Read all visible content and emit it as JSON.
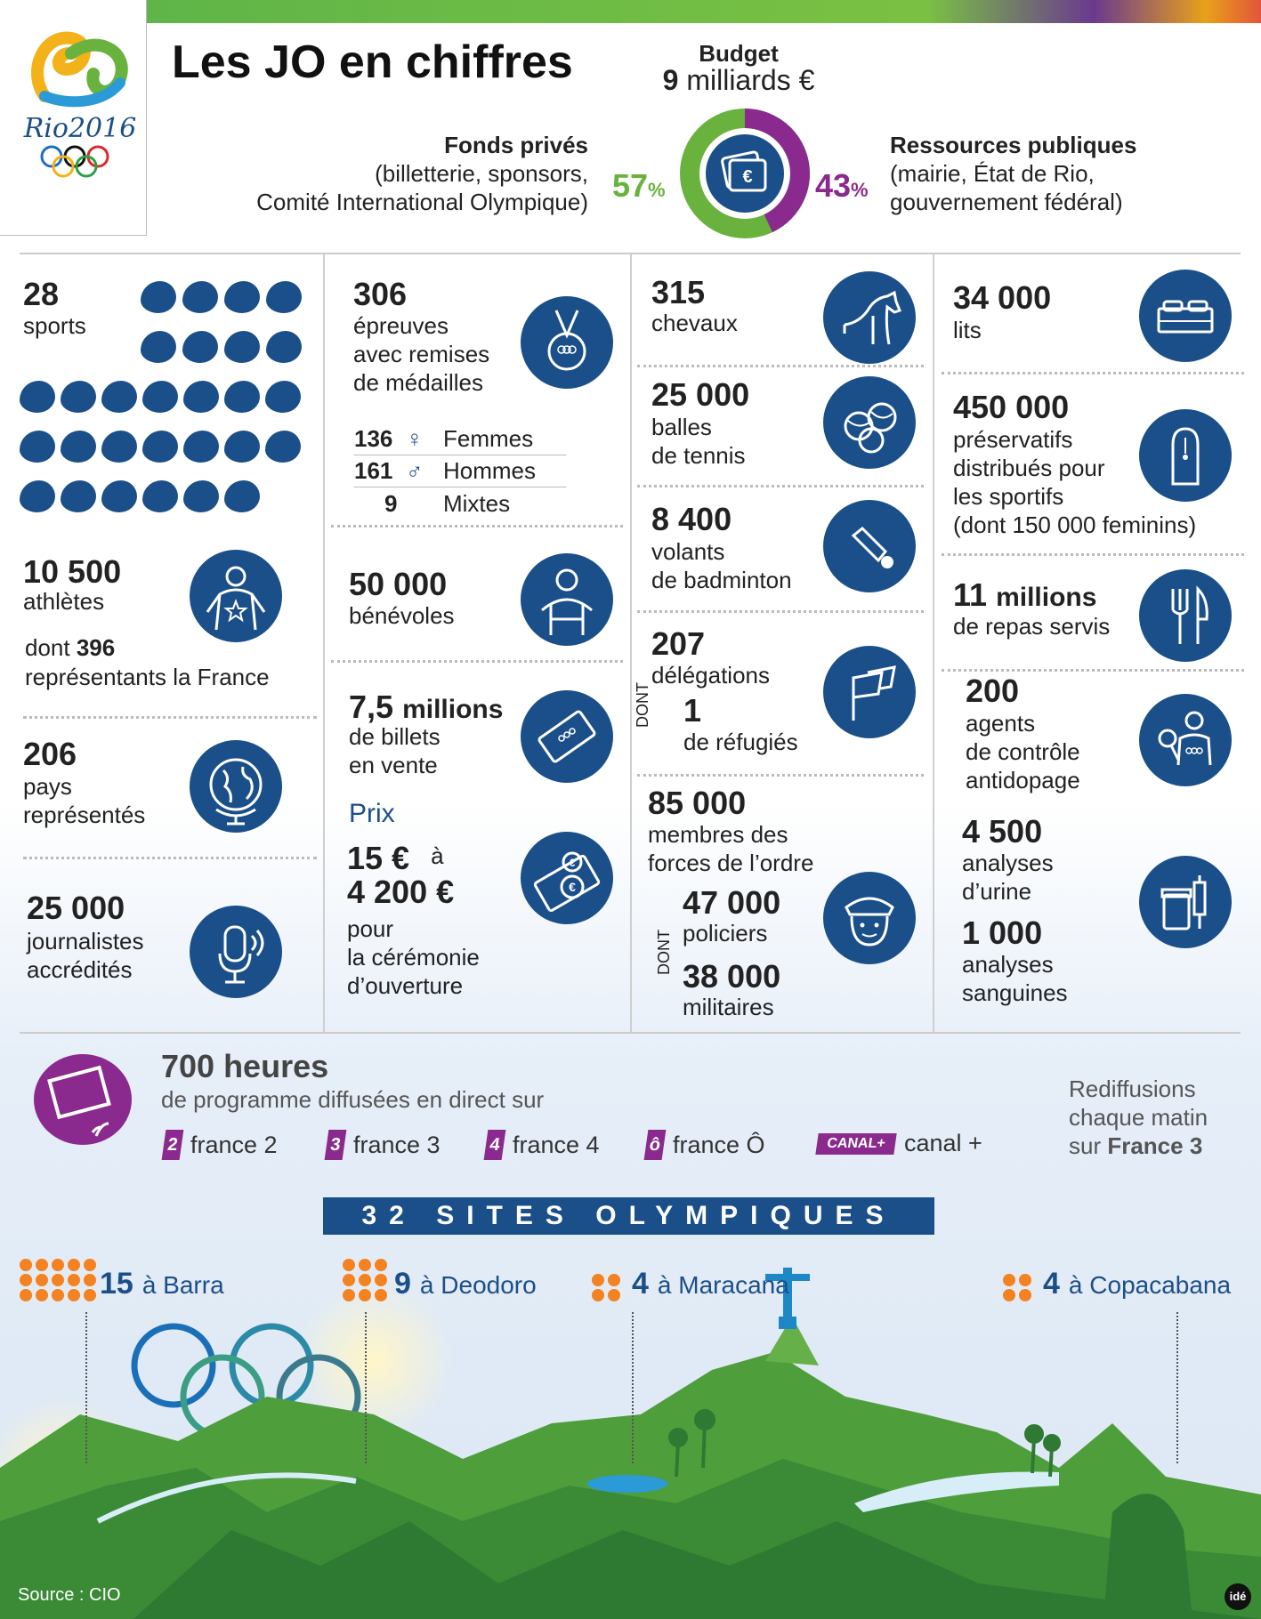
{
  "header": {
    "logo_text": "Rio2016",
    "title": "Les JO en chiffres"
  },
  "budget": {
    "label": "Budget",
    "amount": "9",
    "unit": "milliards €",
    "private_title": "Fonds privés",
    "private_desc1": "(billetterie, sponsors,",
    "private_desc2": "Comité International Olympique)",
    "private_pct": "57",
    "public_title": "Ressources publiques",
    "public_desc1": "(mairie, État de Rio,",
    "public_desc2": "gouvernement fédéral)",
    "public_pct": "43",
    "pct_sign": "%",
    "private_share": 0.57,
    "colors": {
      "private": "#6ab23e",
      "public": "#8a2a8e"
    }
  },
  "col1": {
    "sports_num": "28",
    "sports_label": "sports",
    "athletes_num": "10 500",
    "athletes_label": "athlètes",
    "france_pre": "dont ",
    "france_num": "396",
    "france_label": "représentants la France",
    "pays_num": "206",
    "pays_l1": "pays",
    "pays_l2": "représentés",
    "journ_num": "25 000",
    "journ_l1": "journalistes",
    "journ_l2": "accrédités"
  },
  "col2": {
    "epreuves_num": "306",
    "ep_l1": "épreuves",
    "ep_l2": "avec remises",
    "ep_l3": "de médailles",
    "femmes_num": "136",
    "femmes_label": "Femmes",
    "hommes_num": "161",
    "hommes_label": "Hommes",
    "mixtes_num": "9",
    "mixtes_label": "Mixtes",
    "benev_num": "50 000",
    "benev_label": "bénévoles",
    "billets_num": "7,5",
    "billets_unit": "millions",
    "billets_l1": "de billets",
    "billets_l2": "en vente",
    "prix_label": "Prix",
    "prix_from": "15 €",
    "prix_a": "à",
    "prix_to": "4 200 €",
    "prix_l1": "pour",
    "prix_l2": "la cérémonie",
    "prix_l3": "d’ouverture"
  },
  "col3": {
    "chevaux_num": "315",
    "chevaux_label": "chevaux",
    "balles_num": "25 000",
    "balles_l1": "balles",
    "balles_l2": "de tennis",
    "volants_num": "8 400",
    "volants_l1": "volants",
    "volants_l2": "de badminton",
    "deleg_num": "207",
    "deleg_label": "délégations",
    "dont": "DONT",
    "refug_num": "1",
    "refug_label": "de réfugiés",
    "forces_num": "85 000",
    "forces_l1": "membres des",
    "forces_l2": "forces de l’ordre",
    "polic_num": "47 000",
    "polic_label": "policiers",
    "milit_num": "38 000",
    "milit_label": "militaires"
  },
  "col4": {
    "lits_num": "34 000",
    "lits_label": "lits",
    "preserv_num": "450 000",
    "preserv_l1": "préservatifs",
    "preserv_l2": "distribués pour",
    "preserv_l3": "les sportifs",
    "preserv_l4": "(dont 150 000 feminins)",
    "repas_num": "11",
    "repas_unit": "millions",
    "repas_label": "de repas servis",
    "agents_num": "200",
    "agents_l1": "agents",
    "agents_l2": "de contrôle",
    "agents_l3": "antidopage",
    "urine_num": "4 500",
    "urine_l1": "analyses",
    "urine_l2": "d’urine",
    "sang_num": "1 000",
    "sang_l1": "analyses",
    "sang_l2": "sanguines"
  },
  "tv": {
    "hours": "700 heures",
    "subtitle": "de programme diffusées en direct sur",
    "channels": [
      {
        "logo": "2",
        "name": "france 2"
      },
      {
        "logo": "3",
        "name": "france 3"
      },
      {
        "logo": "4",
        "name": "france 4"
      },
      {
        "logo": "ô",
        "name": "france Ô"
      },
      {
        "logo": "CANAL+",
        "name": "canal +"
      }
    ],
    "rediff_l1": "Rediffusions",
    "rediff_l2": "chaque matin",
    "rediff_pre": "sur ",
    "rediff_bold": "France 3"
  },
  "sites": {
    "banner": "32 SITES OLYMPIQUES",
    "items": [
      {
        "num": "15",
        "label": "à Barra"
      },
      {
        "num": "9",
        "label": "à Deodoro"
      },
      {
        "num": "4",
        "label": "à Maracana"
      },
      {
        "num": "4",
        "label": "à Copacabana"
      }
    ]
  },
  "footer": {
    "source": "Source : CIO",
    "brand": "idé"
  }
}
